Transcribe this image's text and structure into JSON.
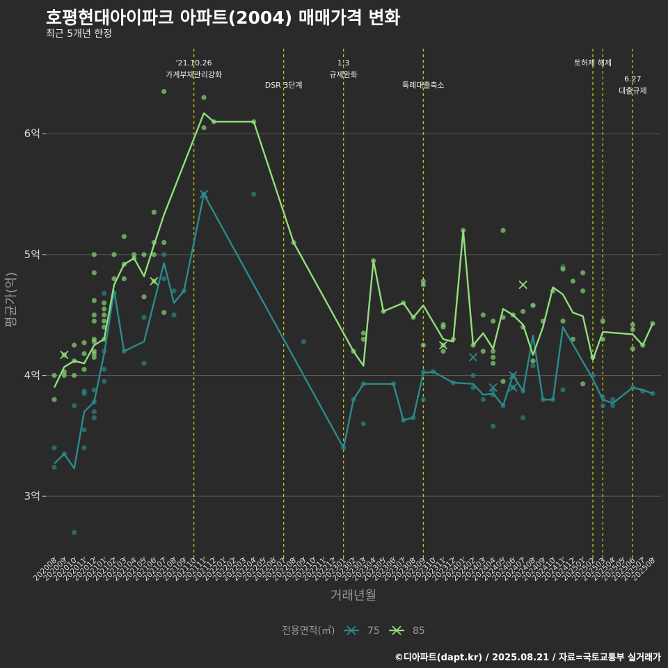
{
  "title": "호평현대아이파크 아파트(2004) 매매가격 변화",
  "subtitle": "최근 5개년 한정",
  "caption": "©디아파트(dapt.kr) / 2025.08.21 / 자료=국토교통부 실거래가",
  "colors": {
    "series_75": "#2a8c8c",
    "series_85": "#8fe07a",
    "event_line": "#d4d400",
    "background": "#2b2a2b",
    "grid": "#5a5a5a"
  },
  "chart_data": {
    "type": "line",
    "xlabel": "거래년월",
    "ylabel": "평균가(억)",
    "ylim": [
      2.5,
      6.75
    ],
    "y_ticks": [
      3,
      4,
      5,
      6
    ],
    "y_tick_labels": [
      "3억",
      "4억",
      "5억",
      "6억"
    ],
    "grid": true,
    "legend": {
      "title": "전용면적(㎡)",
      "position": "bottom",
      "entries": [
        "75",
        "85"
      ]
    },
    "x_categories": [
      "202008",
      "202009",
      "202010",
      "202011",
      "202012",
      "202101",
      "202102",
      "202103",
      "202104",
      "202105",
      "202106",
      "202107",
      "202108",
      "202109",
      "202110",
      "202111",
      "202112",
      "202201",
      "202202",
      "202203",
      "202204",
      "202205",
      "202206",
      "202207",
      "202208",
      "202209",
      "202210",
      "202211",
      "202212",
      "202301",
      "202302",
      "202303",
      "202304",
      "202305",
      "202306",
      "202307",
      "202308",
      "202309",
      "202310",
      "202311",
      "202312",
      "202401",
      "202402",
      "202403",
      "202404",
      "202405",
      "202406",
      "202407",
      "202408",
      "202409",
      "202410",
      "202411",
      "202412",
      "202501",
      "202502",
      "202503",
      "202504",
      "202505",
      "202506",
      "202507",
      "202508"
    ],
    "events": [
      {
        "x": "202110",
        "label_lines": [
          "'21.10.26",
          "가계부채관리강화"
        ],
        "tier": 1
      },
      {
        "x": "202207",
        "label_lines": [
          "DSR 3단계"
        ],
        "tier": 2
      },
      {
        "x": "202301",
        "label_lines": [
          "1.3",
          "규제완화"
        ],
        "tier": 1
      },
      {
        "x": "202309",
        "label_lines": [
          "특례대출축소"
        ],
        "tier": 2
      },
      {
        "x": "202502",
        "label_lines": [
          "토허제 해제"
        ],
        "tier": 1
      },
      {
        "x": "202503",
        "label_lines": [],
        "tier": 1
      },
      {
        "x": "202506",
        "label_lines": [
          "6.27",
          "대출규제"
        ],
        "tier": 2
      }
    ],
    "series": [
      {
        "name": "75",
        "line": [
          [
            "202008",
            3.27
          ],
          [
            "202009",
            3.35
          ],
          [
            "202010",
            3.23
          ],
          [
            "202011",
            3.7
          ],
          [
            "202012",
            3.78
          ],
          [
            "202101",
            4.18
          ],
          [
            "202102",
            4.7
          ],
          [
            "202103",
            4.2
          ],
          [
            "202105",
            4.28
          ],
          [
            "202107",
            4.93
          ],
          [
            "202108",
            4.6
          ],
          [
            "202109",
            4.7
          ],
          [
            "202111",
            5.5
          ],
          [
            "202301",
            3.4
          ],
          [
            "202302",
            3.8
          ],
          [
            "202303",
            3.93
          ],
          [
            "202306",
            3.93
          ],
          [
            "202307",
            3.63
          ],
          [
            "202308",
            3.65
          ],
          [
            "202309",
            4.02
          ],
          [
            "202310",
            4.03
          ],
          [
            "202312",
            3.94
          ],
          [
            "202402",
            3.93
          ],
          [
            "202403",
            3.84
          ],
          [
            "202404",
            3.85
          ],
          [
            "202405",
            3.75
          ],
          [
            "202406",
            4.0
          ],
          [
            "202407",
            3.87
          ],
          [
            "202408",
            4.33
          ],
          [
            "202409",
            3.8
          ],
          [
            "202410",
            3.8
          ],
          [
            "202411",
            4.4
          ],
          [
            "202502",
            3.97
          ],
          [
            "202503",
            3.8
          ],
          [
            "202504",
            3.77
          ],
          [
            "202506",
            3.9
          ],
          [
            "202507",
            3.88
          ],
          [
            "202508",
            3.85
          ]
        ],
        "points": [
          [
            "202008",
            3.4
          ],
          [
            "202008",
            3.24
          ],
          [
            "202009",
            3.35
          ],
          [
            "202010",
            2.7
          ],
          [
            "202010",
            3.75
          ],
          [
            "202011",
            3.4
          ],
          [
            "202011",
            3.55
          ],
          [
            "202011",
            3.85
          ],
          [
            "202011",
            3.87
          ],
          [
            "202012",
            3.65
          ],
          [
            "202012",
            3.7
          ],
          [
            "202012",
            3.78
          ],
          [
            "202012",
            3.88
          ],
          [
            "202101",
            3.95
          ],
          [
            "202101",
            4.05
          ],
          [
            "202101",
            4.2
          ],
          [
            "202101",
            4.68
          ],
          [
            "202102",
            4.68
          ],
          [
            "202103",
            4.2
          ],
          [
            "202105",
            4.1
          ],
          [
            "202105",
            4.48
          ],
          [
            "202107",
            4.8
          ],
          [
            "202107",
            5.0
          ],
          [
            "202108",
            4.5
          ],
          [
            "202108",
            4.7
          ],
          [
            "202109",
            4.7
          ],
          [
            "202111",
            5.5
          ],
          [
            "202204",
            5.5
          ],
          [
            "202209",
            4.28
          ],
          [
            "202301",
            3.4
          ],
          [
            "202302",
            3.8
          ],
          [
            "202303",
            3.6
          ],
          [
            "202303",
            3.93
          ],
          [
            "202306",
            3.93
          ],
          [
            "202307",
            3.63
          ],
          [
            "202308",
            3.65
          ],
          [
            "202309",
            4.03
          ],
          [
            "202309",
            3.8
          ],
          [
            "202310",
            4.03
          ],
          [
            "202312",
            3.94
          ],
          [
            "202402",
            3.9
          ],
          [
            "202402",
            4.0
          ],
          [
            "202403",
            3.8
          ],
          [
            "202404",
            3.58
          ],
          [
            "202404",
            3.84
          ],
          [
            "202404",
            3.88
          ],
          [
            "202405",
            3.75
          ],
          [
            "202406",
            3.9
          ],
          [
            "202406",
            4.0
          ],
          [
            "202407",
            3.65
          ],
          [
            "202407",
            3.87
          ],
          [
            "202408",
            4.08
          ],
          [
            "202408",
            4.58
          ],
          [
            "202409",
            3.8
          ],
          [
            "202410",
            3.8
          ],
          [
            "202411",
            3.88
          ],
          [
            "202411",
            4.9
          ],
          [
            "202502",
            4.0
          ],
          [
            "202502",
            4.15
          ],
          [
            "202503",
            3.75
          ],
          [
            "202503",
            3.82
          ],
          [
            "202504",
            3.75
          ],
          [
            "202504",
            3.8
          ],
          [
            "202506",
            3.9
          ],
          [
            "202507",
            3.87
          ],
          [
            "202508",
            3.85
          ]
        ],
        "crosses": [
          [
            "202111",
            5.5
          ],
          [
            "202402",
            4.15
          ],
          [
            "202404",
            3.9
          ],
          [
            "202406",
            3.9
          ],
          [
            "202406",
            4.0
          ]
        ]
      },
      {
        "name": "85",
        "line": [
          [
            "202008",
            3.9
          ],
          [
            "202009",
            4.07
          ],
          [
            "202010",
            4.12
          ],
          [
            "202011",
            4.1
          ],
          [
            "202012",
            4.25
          ],
          [
            "202101",
            4.3
          ],
          [
            "202102",
            4.75
          ],
          [
            "202103",
            4.92
          ],
          [
            "202104",
            4.97
          ],
          [
            "202105",
            4.82
          ],
          [
            "202106",
            5.08
          ],
          [
            "202107",
            5.33
          ],
          [
            "202111",
            6.17
          ],
          [
            "202112",
            6.1
          ],
          [
            "202204",
            6.1
          ],
          [
            "202208",
            5.1
          ],
          [
            "202302",
            4.2
          ],
          [
            "202303",
            4.08
          ],
          [
            "202304",
            4.95
          ],
          [
            "202305",
            4.53
          ],
          [
            "202307",
            4.6
          ],
          [
            "202308",
            4.48
          ],
          [
            "202309",
            4.58
          ],
          [
            "202311",
            4.3
          ],
          [
            "202312",
            4.28
          ],
          [
            "202401",
            5.2
          ],
          [
            "202402",
            4.25
          ],
          [
            "202403",
            4.35
          ],
          [
            "202404",
            4.22
          ],
          [
            "202405",
            4.55
          ],
          [
            "202406",
            4.5
          ],
          [
            "202407",
            4.42
          ],
          [
            "202408",
            4.17
          ],
          [
            "202409",
            4.4
          ],
          [
            "202410",
            4.73
          ],
          [
            "202411",
            4.67
          ],
          [
            "202412",
            4.52
          ],
          [
            "202501",
            4.49
          ],
          [
            "202502",
            4.13
          ],
          [
            "202503",
            4.36
          ],
          [
            "202506",
            4.34
          ],
          [
            "202507",
            4.25
          ],
          [
            "202508",
            4.43
          ]
        ],
        "points": [
          [
            "202008",
            3.8
          ],
          [
            "202008",
            4.0
          ],
          [
            "202009",
            4.0
          ],
          [
            "202009",
            4.03
          ],
          [
            "202009",
            4.17
          ],
          [
            "202010",
            4.0
          ],
          [
            "202010",
            4.12
          ],
          [
            "202010",
            4.25
          ],
          [
            "202011",
            4.05
          ],
          [
            "202011",
            4.18
          ],
          [
            "202011",
            4.27
          ],
          [
            "202012",
            4.15
          ],
          [
            "202012",
            4.18
          ],
          [
            "202012",
            4.2
          ],
          [
            "202012",
            4.28
          ],
          [
            "202012",
            4.3
          ],
          [
            "202012",
            4.45
          ],
          [
            "202012",
            4.5
          ],
          [
            "202012",
            4.62
          ],
          [
            "202012",
            4.85
          ],
          [
            "202012",
            5.0
          ],
          [
            "202101",
            4.3
          ],
          [
            "202101",
            4.4
          ],
          [
            "202101",
            4.45
          ],
          [
            "202101",
            4.5
          ],
          [
            "202101",
            4.55
          ],
          [
            "202101",
            4.6
          ],
          [
            "202102",
            4.8
          ],
          [
            "202102",
            5.0
          ],
          [
            "202103",
            4.8
          ],
          [
            "202103",
            4.92
          ],
          [
            "202103",
            5.15
          ],
          [
            "202104",
            4.97
          ],
          [
            "202104",
            5.0
          ],
          [
            "202105",
            4.65
          ],
          [
            "202105",
            5.0
          ],
          [
            "202106",
            4.78
          ],
          [
            "202106",
            5.0
          ],
          [
            "202106",
            5.1
          ],
          [
            "202106",
            5.35
          ],
          [
            "202107",
            4.52
          ],
          [
            "202107",
            5.1
          ],
          [
            "202107",
            6.35
          ],
          [
            "202111",
            6.05
          ],
          [
            "202111",
            6.3
          ],
          [
            "202112",
            6.1
          ],
          [
            "202204",
            6.1
          ],
          [
            "202208",
            5.1
          ],
          [
            "202302",
            4.2
          ],
          [
            "202303",
            4.3
          ],
          [
            "202303",
            4.35
          ],
          [
            "202304",
            4.95
          ],
          [
            "202305",
            4.53
          ],
          [
            "202307",
            4.6
          ],
          [
            "202308",
            4.48
          ],
          [
            "202309",
            4.25
          ],
          [
            "202309",
            4.75
          ],
          [
            "202309",
            4.78
          ],
          [
            "202311",
            4.2
          ],
          [
            "202311",
            4.25
          ],
          [
            "202311",
            4.4
          ],
          [
            "202311",
            4.42
          ],
          [
            "202312",
            4.3
          ],
          [
            "202401",
            5.2
          ],
          [
            "202402",
            4.25
          ],
          [
            "202403",
            4.2
          ],
          [
            "202403",
            4.5
          ],
          [
            "202404",
            4.1
          ],
          [
            "202404",
            4.15
          ],
          [
            "202404",
            4.2
          ],
          [
            "202404",
            4.45
          ],
          [
            "202405",
            3.95
          ],
          [
            "202405",
            4.48
          ],
          [
            "202405",
            5.2
          ],
          [
            "202406",
            4.5
          ],
          [
            "202407",
            4.4
          ],
          [
            "202407",
            4.53
          ],
          [
            "202408",
            4.12
          ],
          [
            "202408",
            4.58
          ],
          [
            "202409",
            4.45
          ],
          [
            "202410",
            4.7
          ],
          [
            "202411",
            4.45
          ],
          [
            "202411",
            4.88
          ],
          [
            "202412",
            4.3
          ],
          [
            "202412",
            4.78
          ],
          [
            "202501",
            3.93
          ],
          [
            "202501",
            4.7
          ],
          [
            "202501",
            4.85
          ],
          [
            "202502",
            4.15
          ],
          [
            "202503",
            4.3
          ],
          [
            "202503",
            4.45
          ],
          [
            "202506",
            4.22
          ],
          [
            "202506",
            4.38
          ],
          [
            "202506",
            4.42
          ],
          [
            "202507",
            4.25
          ],
          [
            "202508",
            4.43
          ]
        ],
        "crosses": [
          [
            "202009",
            4.17
          ],
          [
            "202106",
            4.78
          ],
          [
            "202311",
            4.25
          ],
          [
            "202407",
            4.75
          ]
        ]
      }
    ]
  }
}
